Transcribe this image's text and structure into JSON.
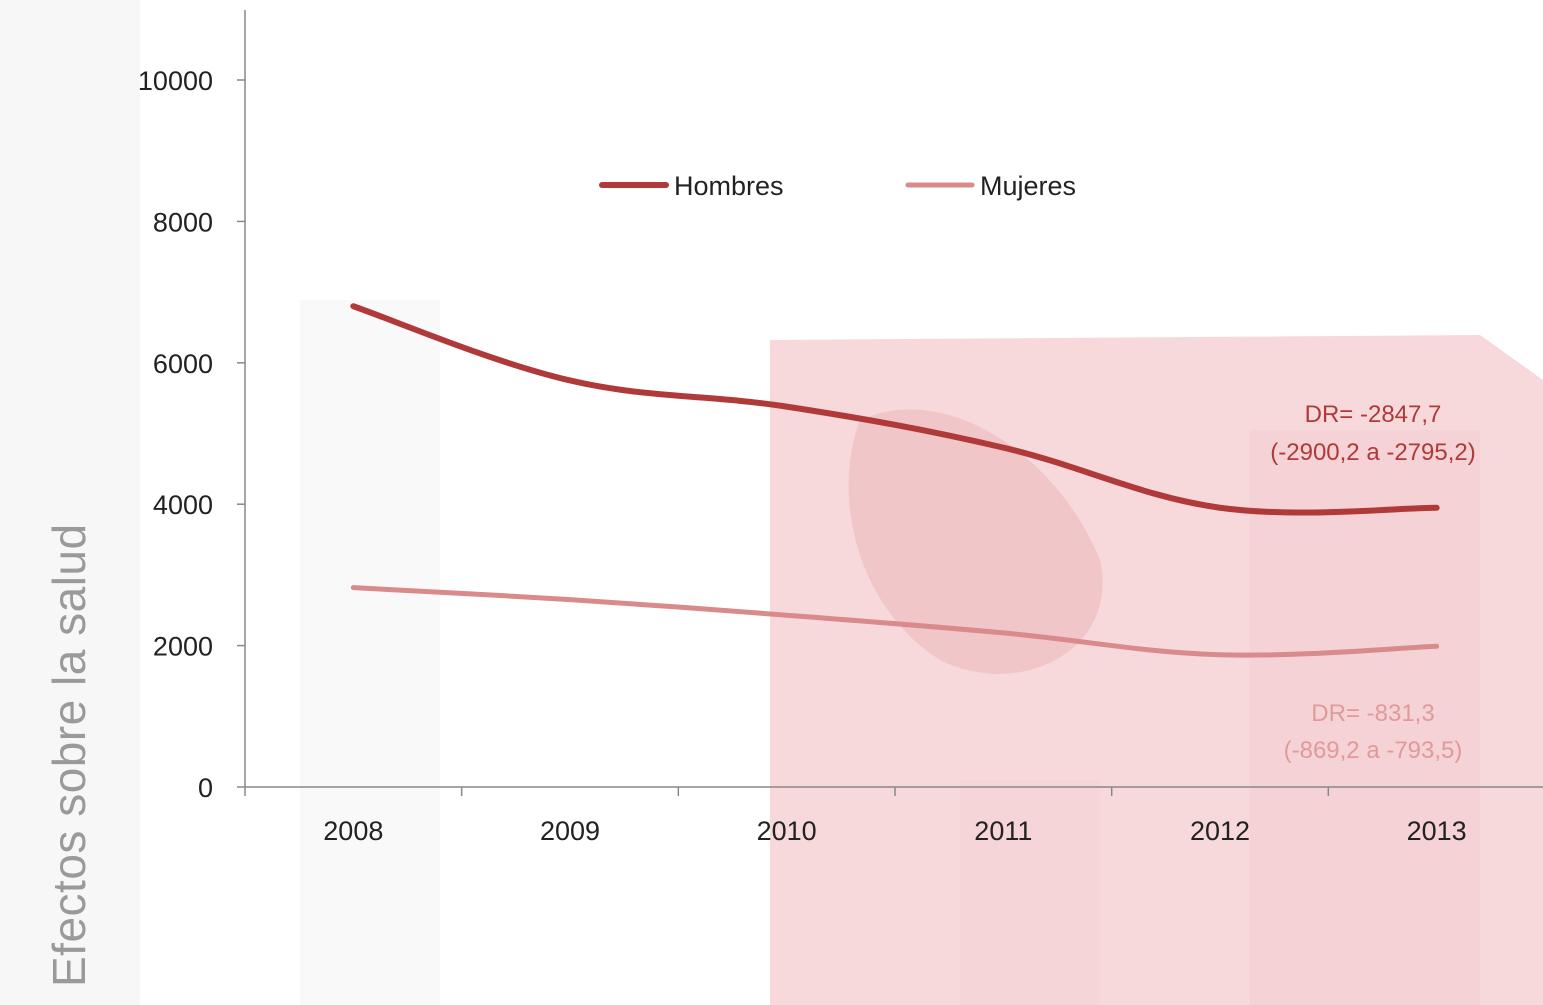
{
  "side_title": "Efectos sobre la salud",
  "chart_data": {
    "type": "line",
    "title": "",
    "xlabel": "",
    "ylabel": "",
    "x": [
      "2008",
      "2009",
      "2010",
      "2011",
      "2012",
      "2013"
    ],
    "ylim": [
      0,
      10000
    ],
    "yticks": [
      "0",
      "2000",
      "4000",
      "6000",
      "8000",
      "10000"
    ],
    "grid": false,
    "legend_position": "top-center",
    "series": [
      {
        "name": "Hombres",
        "color": "#b03a3a",
        "values": [
          6800,
          5750,
          5380,
          4800,
          3950,
          3950
        ]
      },
      {
        "name": "Mujeres",
        "color": "#d98a8a",
        "values": [
          2820,
          2650,
          2430,
          2180,
          1870,
          1990
        ]
      }
    ],
    "annotations": [
      {
        "series": "Hombres",
        "color": "#b03a3a",
        "line1": "DR= -2847,7",
        "line2": "(-2900,2 a -2795,2)"
      },
      {
        "series": "Mujeres",
        "color": "#e09a9a",
        "line1": "DR= -831,3",
        "line2": "(-869,2 a -793,5)"
      }
    ]
  }
}
